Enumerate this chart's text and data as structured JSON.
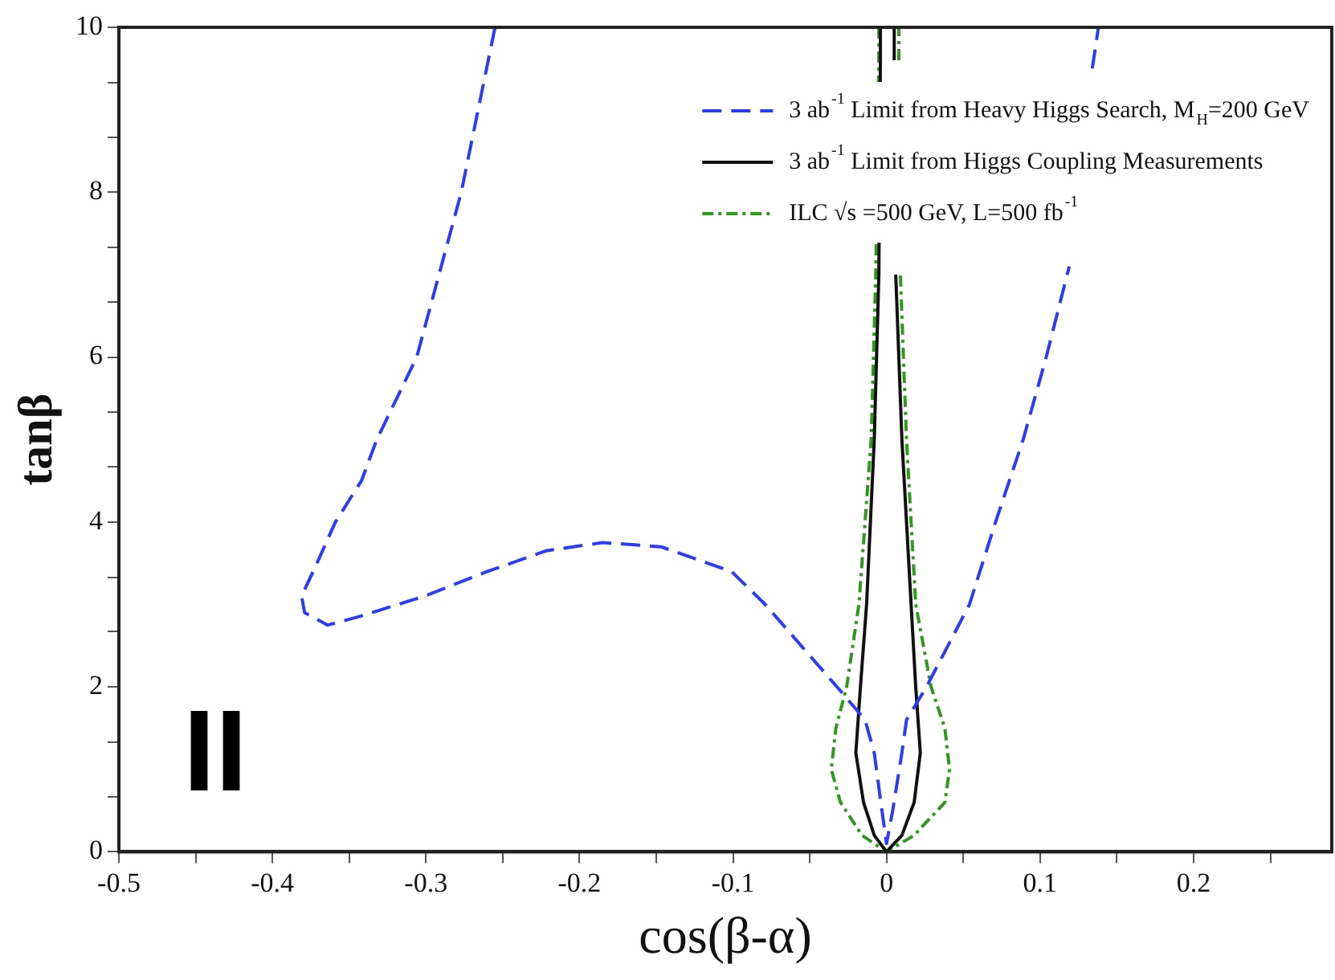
{
  "chart_data": {
    "type": "line",
    "xlabel": "cos(β-α)",
    "ylabel": "tanβ",
    "xlim": [
      -0.5,
      0.29
    ],
    "ylim": [
      0,
      10
    ],
    "xticks": [
      -0.5,
      {
        "value": -0.45,
        "label": null
      },
      -0.4,
      {
        "value": -0.35,
        "label": null
      },
      -0.3,
      {
        "value": -0.25,
        "label": null
      },
      -0.2,
      {
        "value": -0.15,
        "label": null
      },
      -0.1,
      {
        "value": -0.05,
        "label": null
      },
      0,
      {
        "value": 0.05,
        "label": null
      },
      0.1,
      {
        "value": 0.15,
        "label": null
      },
      0.2,
      {
        "value": 0.25,
        "label": null
      }
    ],
    "yticks": [
      0,
      {
        "value": 0.67,
        "label": null
      },
      {
        "value": 1.33,
        "label": null
      },
      2,
      {
        "value": 2.67,
        "label": null
      },
      {
        "value": 3.33,
        "label": null
      },
      4,
      {
        "value": 4.67,
        "label": null
      },
      {
        "value": 5.33,
        "label": null
      },
      6,
      {
        "value": 6.67,
        "label": null
      },
      {
        "value": 7.33,
        "label": null
      },
      8,
      {
        "value": 8.67,
        "label": null
      },
      {
        "value": 9.33,
        "label": null
      },
      10
    ],
    "grid": false,
    "legend": "top right",
    "marker": "none",
    "annotations": [
      "II"
    ],
    "series": [
      {
        "name": "3 ab$^{-1}$ Limit from Heavy Higgs Search, M$_{H}$=200 GeV",
        "color": "#2b3cf5",
        "line_style": "dashed",
        "x": [
          -0.255,
          -0.277,
          -0.306,
          -0.332,
          -0.342,
          -0.359,
          -0.371,
          -0.381,
          -0.379,
          -0.364,
          -0.344,
          -0.301,
          -0.26,
          -0.222,
          -0.185,
          -0.147,
          -0.101,
          -0.079,
          -0.029,
          -0.014,
          -0.008,
          -0.003,
          0,
          0.004,
          0.01,
          0.013,
          0.026,
          0.054,
          0.071,
          0.089,
          0.104,
          0.119,
          null,
          0.134,
          0.138
        ],
        "values": [
          10,
          8,
          6,
          5,
          4.5,
          4,
          3.5,
          3.1,
          2.9,
          2.75,
          2.85,
          3.1,
          3.4,
          3.65,
          3.75,
          3.7,
          3.4,
          3,
          1.93,
          1.6,
          1.2,
          0.5,
          0.1,
          0.5,
          1.2,
          1.6,
          2,
          3,
          4,
          5,
          6,
          7.1,
          null,
          9.5,
          10
        ]
      },
      {
        "name": "3 ab$^{-1}$ Limit from Higgs Coupling Measurements",
        "color": "#111111",
        "line_style": "solid",
        "x": [
          -0.004,
          -0.004,
          -0.005,
          -0.008,
          -0.013,
          -0.017,
          -0.02,
          -0.015,
          -0.008,
          0,
          0.01,
          0.018,
          0.022,
          0.019,
          0.016,
          0.01,
          0.006,
          null,
          0.005,
          0.005
        ],
        "values": [
          10,
          9.6,
          7,
          5,
          3,
          2,
          1.2,
          0.6,
          0.2,
          0,
          0.2,
          0.6,
          1.2,
          2,
          3,
          5,
          7,
          null,
          9.6,
          10
        ]
      },
      {
        "name": "ILC √s =500 GeV, L=500 fb$^{-1}$",
        "color": "#2e9a1c",
        "line_style": "dashdot",
        "x": [
          -0.005,
          -0.005,
          -0.007,
          -0.01,
          -0.018,
          -0.026,
          -0.033,
          -0.036,
          -0.03,
          -0.016,
          0,
          0.018,
          0.038,
          0.041,
          0.038,
          0.029,
          0.019,
          0.013,
          0.009,
          null,
          0.008,
          0.008
        ],
        "values": [
          10,
          9.6,
          7,
          5,
          3,
          2,
          1.5,
          1,
          0.6,
          0.2,
          0,
          0.2,
          0.6,
          1,
          1.5,
          2,
          3,
          5,
          7,
          null,
          9.6,
          10
        ]
      }
    ]
  }
}
